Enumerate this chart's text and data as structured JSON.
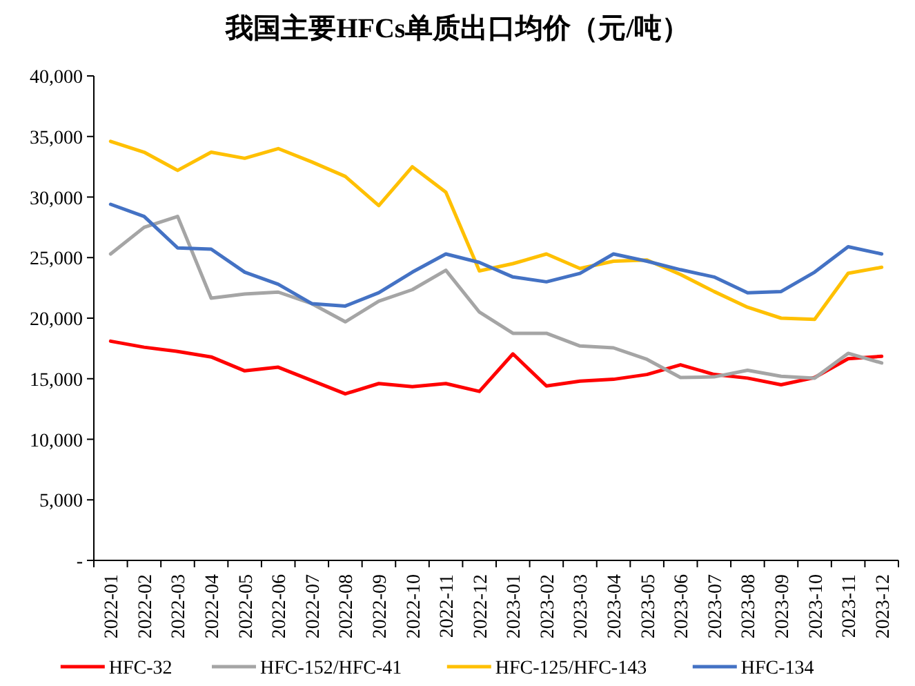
{
  "chart_data": {
    "type": "line",
    "title": "我国主要HFCs单质出口均价（元/吨）",
    "categories": [
      "2022-01",
      "2022-02",
      "2022-03",
      "2022-04",
      "2022-05",
      "2022-06",
      "2022-07",
      "2022-08",
      "2022-09",
      "2022-10",
      "2022-11",
      "2022-12",
      "2023-01",
      "2023-02",
      "2023-03",
      "2023-04",
      "2023-05",
      "2023-06",
      "2023-07",
      "2023-08",
      "2023-09",
      "2023-10",
      "2023-11",
      "2023-12"
    ],
    "series": [
      {
        "name": "HFC-32",
        "color": "#ff0000",
        "values": [
          18100,
          17600,
          17250,
          16800,
          15650,
          15950,
          14850,
          13750,
          14600,
          14350,
          14600,
          13950,
          17050,
          14400,
          14800,
          14950,
          15350,
          16150,
          15350,
          15050,
          14500,
          15100,
          16650,
          16850
        ]
      },
      {
        "name": "HFC-152/HFC-41",
        "color": "#a5a5a5",
        "values": [
          25300,
          27500,
          28400,
          21650,
          22000,
          22150,
          21200,
          19700,
          21400,
          22350,
          23950,
          20500,
          18750,
          18750,
          17700,
          17550,
          16600,
          15100,
          15150,
          15700,
          15200,
          15050,
          17100,
          16300
        ]
      },
      {
        "name": "HFC-125/HFC-143",
        "color": "#ffc000",
        "values": [
          34600,
          33700,
          32200,
          33700,
          33200,
          34000,
          32900,
          31700,
          29300,
          32500,
          30400,
          23900,
          24500,
          25300,
          24100,
          24700,
          24800,
          23600,
          22200,
          20900,
          20000,
          19900,
          23700,
          24200
        ]
      },
      {
        "name": "HFC-134",
        "color": "#4472c4",
        "values": [
          29400,
          28400,
          25800,
          25700,
          23800,
          22800,
          21200,
          21000,
          22100,
          23800,
          25300,
          24600,
          23400,
          23000,
          23700,
          25300,
          24700,
          24000,
          23400,
          22100,
          22200,
          23800,
          25900,
          25300
        ]
      }
    ],
    "ylim": [
      0,
      40000
    ],
    "yticks": [
      {
        "value": 0,
        "label": "-"
      },
      {
        "value": 5000,
        "label": "5,000"
      },
      {
        "value": 10000,
        "label": "10,000"
      },
      {
        "value": 15000,
        "label": "15,000"
      },
      {
        "value": 20000,
        "label": "20,000"
      },
      {
        "value": 25000,
        "label": "25,000"
      },
      {
        "value": 30000,
        "label": "30,000"
      },
      {
        "value": 35000,
        "label": "35,000"
      },
      {
        "value": 40000,
        "label": "40,000"
      }
    ],
    "legend": "bottom",
    "line_style": "solid"
  }
}
